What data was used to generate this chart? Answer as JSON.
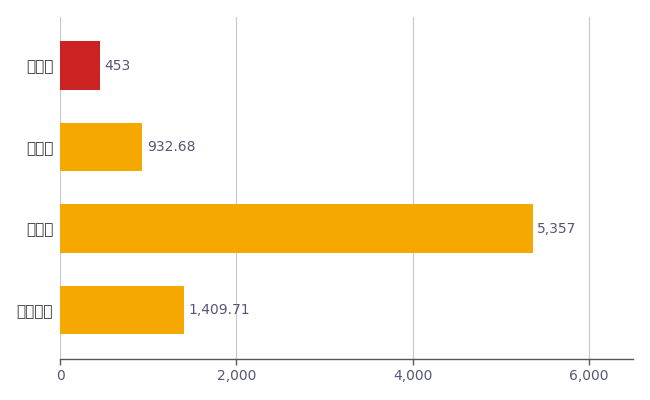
{
  "categories": [
    "美郷町",
    "県平均",
    "県最大",
    "全国平均"
  ],
  "values": [
    453,
    932.68,
    5357,
    1409.71
  ],
  "bar_colors": [
    "#cc2222",
    "#f5a800",
    "#f5a800",
    "#f5a800"
  ],
  "labels": [
    "453",
    "932.68",
    "5,357",
    "1,409.71"
  ],
  "xlim": [
    0,
    6500
  ],
  "xticks": [
    0,
    2000,
    4000,
    6000
  ],
  "background_color": "#ffffff",
  "grid_color": "#c8c8c8",
  "bar_height": 0.6,
  "label_fontsize": 10,
  "tick_fontsize": 10,
  "ytick_fontsize": 11,
  "text_color": "#555577"
}
